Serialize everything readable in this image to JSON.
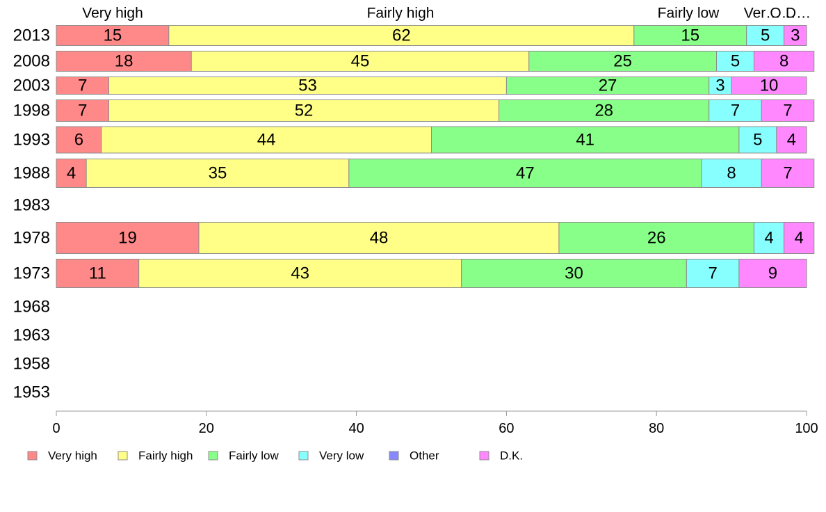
{
  "chart_data": {
    "type": "bar",
    "orientation": "horizontal",
    "stacked": true,
    "categories": [
      "2013",
      "2008",
      "2003",
      "1998",
      "1993",
      "1988",
      "1983",
      "1978",
      "1973",
      "1968",
      "1963",
      "1958",
      "1953"
    ],
    "series": [
      {
        "name": "Very high",
        "color": "#ff8888",
        "values": [
          15,
          18,
          7,
          7,
          6,
          4,
          null,
          19,
          11,
          null,
          null,
          null,
          null
        ]
      },
      {
        "name": "Fairly high",
        "color": "#ffff88",
        "values": [
          62,
          45,
          53,
          52,
          44,
          35,
          null,
          48,
          43,
          null,
          null,
          null,
          null
        ]
      },
      {
        "name": "Fairly low",
        "color": "#88ff88",
        "values": [
          15,
          25,
          27,
          28,
          41,
          47,
          null,
          26,
          30,
          null,
          null,
          null,
          null
        ]
      },
      {
        "name": "Very low",
        "color": "#88ffff",
        "values": [
          5,
          5,
          3,
          7,
          5,
          8,
          null,
          4,
          7,
          null,
          null,
          null,
          null
        ]
      },
      {
        "name": "Other",
        "color": "#8888ff",
        "values": [
          0,
          0,
          0,
          0,
          0,
          0,
          null,
          0,
          0,
          null,
          null,
          null,
          null
        ]
      },
      {
        "name": "D.K.",
        "color": "#ff88ff",
        "values": [
          3,
          8,
          10,
          7,
          4,
          7,
          null,
          4,
          9,
          null,
          null,
          null,
          null
        ]
      }
    ],
    "top_labels": [
      "Very high",
      "Fairly high",
      "Fairly low",
      "Ver…",
      "O…",
      "D…"
    ],
    "xlim": [
      0,
      100
    ],
    "xticks": [
      "0",
      "20",
      "40",
      "60",
      "80",
      "100"
    ],
    "grid": false,
    "legend_position": "bottom-left"
  }
}
